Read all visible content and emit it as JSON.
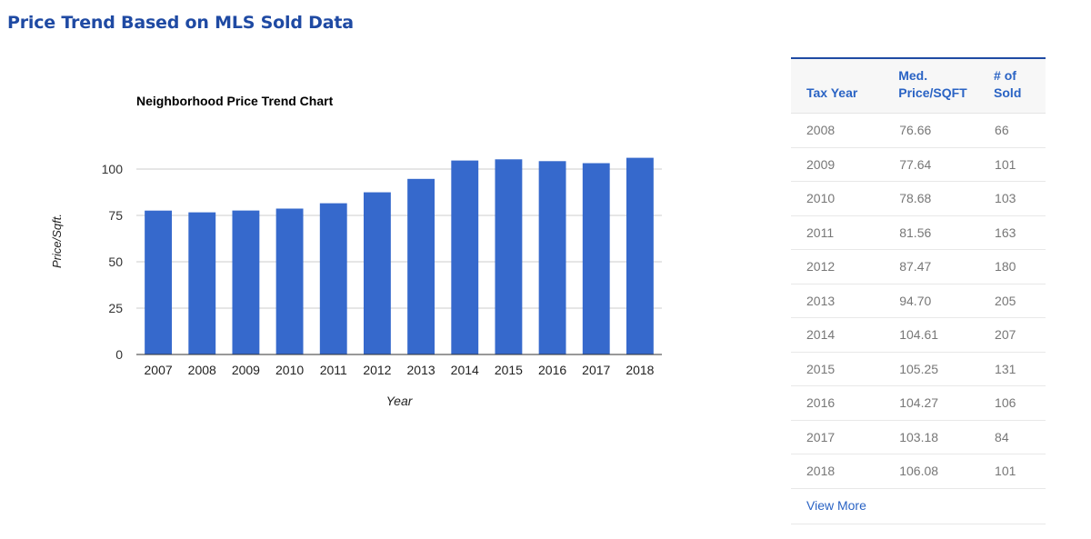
{
  "page": {
    "title": "Price Trend Based on MLS Sold Data"
  },
  "colors": {
    "title": "#1f4aa3",
    "bar": "#3669cc",
    "link": "#2a63c4",
    "table_header_bg": "#f7f7f7",
    "table_text": "#777777"
  },
  "chart_data": {
    "type": "bar",
    "title": "Neighborhood Price Trend Chart",
    "xlabel": "Year",
    "ylabel": "Price/Sqft.",
    "categories": [
      "2007",
      "2008",
      "2009",
      "2010",
      "2011",
      "2012",
      "2013",
      "2014",
      "2015",
      "2016",
      "2017",
      "2018"
    ],
    "values": [
      77.6,
      76.66,
      77.64,
      78.68,
      81.56,
      87.47,
      94.7,
      104.61,
      105.25,
      104.27,
      103.18,
      106.08
    ],
    "ylim": [
      0,
      125
    ],
    "yticks": [
      0,
      25,
      50,
      75,
      100
    ],
    "grid": true,
    "legend": "none"
  },
  "table": {
    "headers": [
      "Tax Year",
      "Med. Price/SQFT",
      "# of Sold"
    ],
    "rows": [
      [
        "2008",
        "76.66",
        "66"
      ],
      [
        "2009",
        "77.64",
        "101"
      ],
      [
        "2010",
        "78.68",
        "103"
      ],
      [
        "2011",
        "81.56",
        "163"
      ],
      [
        "2012",
        "87.47",
        "180"
      ],
      [
        "2013",
        "94.70",
        "205"
      ],
      [
        "2014",
        "104.61",
        "207"
      ],
      [
        "2015",
        "105.25",
        "131"
      ],
      [
        "2016",
        "104.27",
        "106"
      ],
      [
        "2017",
        "103.18",
        "84"
      ],
      [
        "2018",
        "106.08",
        "101"
      ]
    ],
    "view_more_label": "View More"
  }
}
